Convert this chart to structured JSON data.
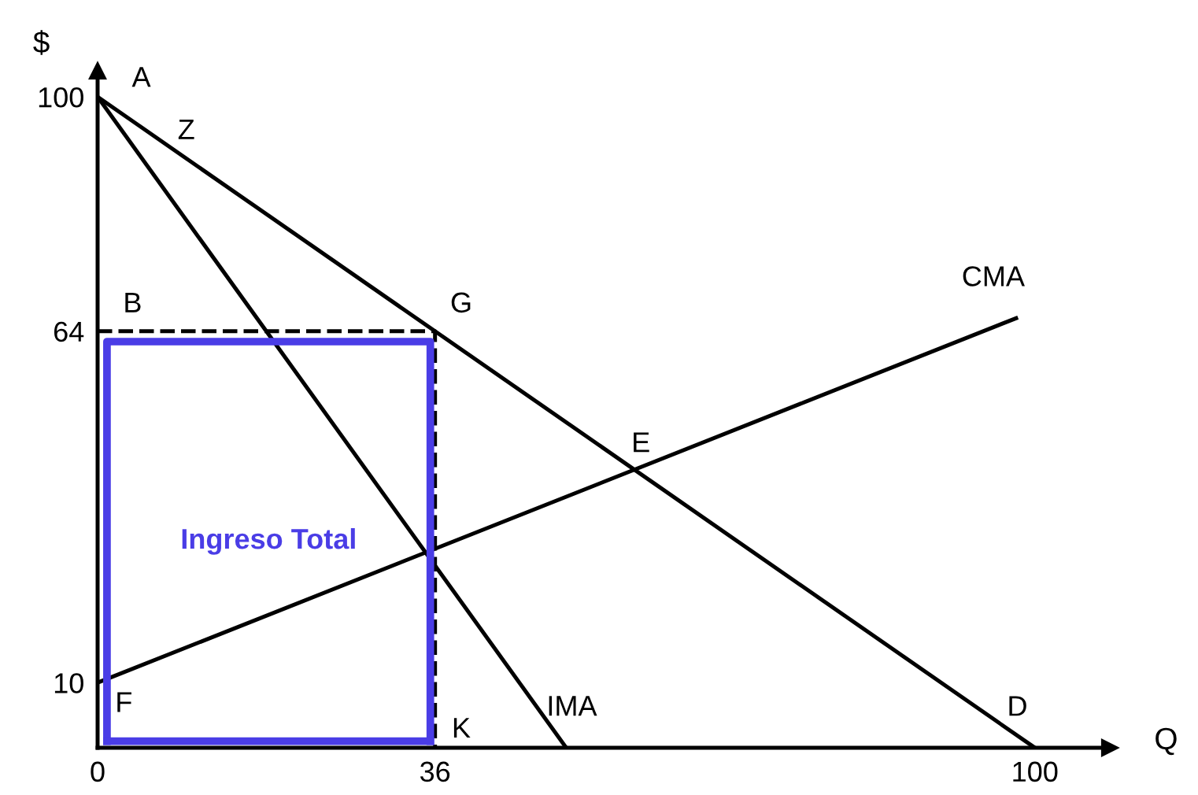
{
  "chart_data": {
    "type": "line",
    "xlabel": "Q",
    "ylabel": "$",
    "xlim": [
      0,
      108
    ],
    "ylim": [
      0,
      104
    ],
    "xticks": [
      0,
      36,
      100
    ],
    "yticks": [
      10,
      64,
      100
    ],
    "grid": false,
    "legend": false,
    "marker": "none",
    "series": [
      {
        "color": "#000000",
        "x": [
          0,
          100
        ],
        "values": [
          100,
          0
        ]
      },
      {
        "name": "IMA",
        "color": "#000000",
        "x": [
          0,
          50
        ],
        "values": [
          100,
          0
        ]
      },
      {
        "name": "CMA",
        "color": "#000000",
        "x": [
          0,
          98
        ],
        "values": [
          10,
          66
        ]
      },
      {
        "color": "#000000",
        "line_style": "dashed",
        "x": [
          0,
          36,
          36
        ],
        "values": [
          64,
          64,
          0
        ]
      },
      {
        "name": "Ingreso Total",
        "color": "#4a3de6",
        "x": [
          1,
          1,
          35.5,
          35.5
        ],
        "values": [
          1,
          62.4,
          62.4,
          1
        ]
      },
      {
        "color": "#4a3de6",
        "x": [
          1,
          35.5
        ],
        "values": [
          1,
          1
        ]
      }
    ],
    "annotations": [
      {
        "text": "A",
        "x": 0,
        "y": 100
      },
      {
        "text": "Z",
        "x": 2,
        "y": 98
      },
      {
        "text": "B",
        "x": 0,
        "y": 64
      },
      {
        "text": "G",
        "x": 36,
        "y": 64
      },
      {
        "text": "E",
        "x": 56.8,
        "y": 43.2
      },
      {
        "text": "F",
        "x": 0,
        "y": 10
      },
      {
        "text": "K",
        "x": 36,
        "y": 0
      },
      {
        "text": "D",
        "x": 100,
        "y": 0
      }
    ]
  }
}
